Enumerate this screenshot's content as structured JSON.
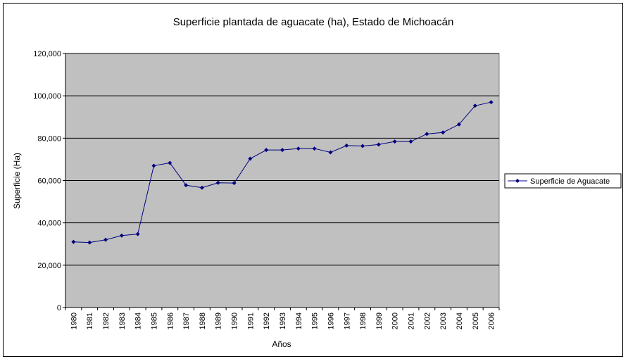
{
  "chart_data": {
    "type": "line",
    "title": "Superficie plantada de aguacate (ha), Estado de Michoacán",
    "xlabel": "Años",
    "ylabel": "Superficie (Ha)",
    "ylim": [
      0,
      120000
    ],
    "yticks": [
      0,
      20000,
      40000,
      60000,
      80000,
      100000,
      120000
    ],
    "ytick_labels": [
      "0",
      "20,000",
      "40,000",
      "60,000",
      "80,000",
      "100,000",
      "120,000"
    ],
    "grid": true,
    "legend_position": "right",
    "categories": [
      "1980",
      "1981",
      "1982",
      "1983",
      "1984",
      "1985",
      "1986",
      "1987",
      "1988",
      "1989",
      "1990",
      "1991",
      "1992",
      "1993",
      "1994",
      "1995",
      "1996",
      "1997",
      "1998",
      "1999",
      "2000",
      "2001",
      "2002",
      "2003",
      "2004",
      "2005",
      "2006"
    ],
    "series": [
      {
        "name": "Superficie de Aguacate",
        "color": "#000080",
        "values": [
          31000,
          30700,
          32000,
          34000,
          34700,
          67000,
          68300,
          57800,
          56600,
          58900,
          58800,
          70300,
          74400,
          74400,
          75100,
          75100,
          73300,
          76500,
          76300,
          77000,
          78400,
          78400,
          82000,
          82700,
          86500,
          95300,
          97000
        ]
      }
    ],
    "plot_background": "#c0c0c0"
  }
}
